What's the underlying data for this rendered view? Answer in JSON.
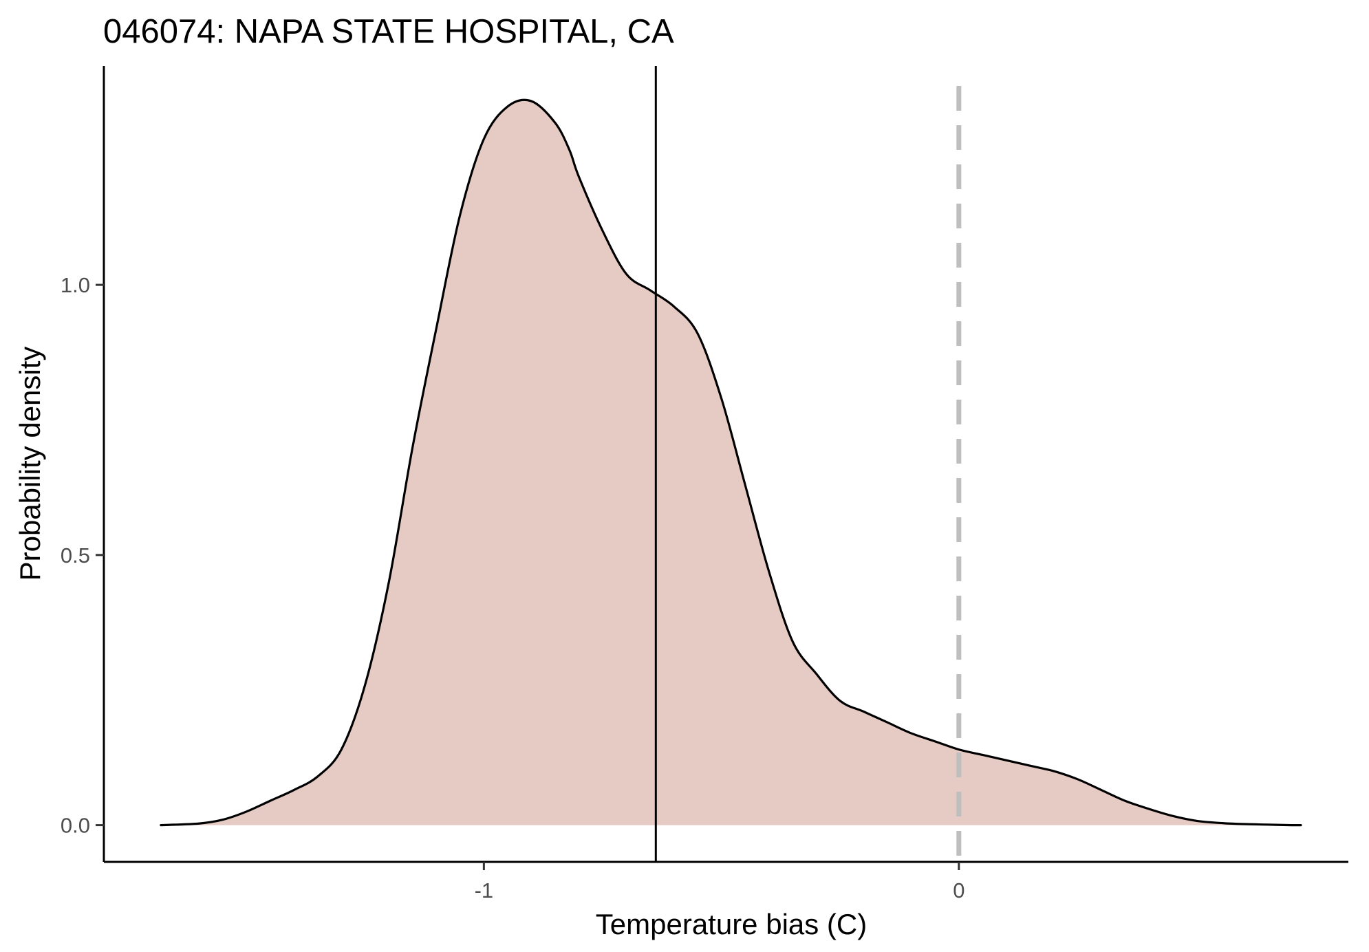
{
  "chart_data": {
    "type": "area",
    "title": "046074: NAPA STATE HOSPITAL, CA",
    "xlabel": "Temperature bias (C)",
    "ylabel": "Probability density",
    "xlim": [
      -1.8,
      0.82
    ],
    "ylim": [
      -0.068,
      1.405
    ],
    "x_ticks": [
      {
        "value": -1,
        "label": "-1"
      },
      {
        "value": 0,
        "label": "0"
      }
    ],
    "y_ticks": [
      {
        "value": 0.0,
        "label": "0.0"
      },
      {
        "value": 0.5,
        "label": "0.5"
      },
      {
        "value": 1.0,
        "label": "1.0"
      }
    ],
    "grid": false,
    "fill_color": "#e6cbc4",
    "line_color": "#000000",
    "reference_lines": [
      {
        "x": -0.638,
        "style": "solid",
        "color": "#000000"
      },
      {
        "x": 0.0,
        "style": "dashed",
        "color": "#bebebe"
      }
    ],
    "series": [
      {
        "x": [
          -1.68,
          -1.6,
          -1.55,
          -1.5,
          -1.45,
          -1.4,
          -1.35,
          -1.3,
          -1.25,
          -1.2,
          -1.15,
          -1.1,
          -1.05,
          -1.0,
          -0.95,
          -0.9,
          -0.85,
          -0.82,
          -0.8,
          -0.75,
          -0.7,
          -0.65,
          -0.6,
          -0.55,
          -0.5,
          -0.45,
          -0.4,
          -0.35,
          -0.3,
          -0.25,
          -0.2,
          -0.15,
          -0.1,
          -0.05,
          0.0,
          0.05,
          0.1,
          0.15,
          0.2,
          0.25,
          0.3,
          0.35,
          0.4,
          0.45,
          0.5,
          0.55,
          0.6,
          0.65,
          0.7,
          0.72
        ],
        "y": [
          0.0,
          0.003,
          0.01,
          0.025,
          0.045,
          0.065,
          0.09,
          0.14,
          0.26,
          0.45,
          0.7,
          0.92,
          1.13,
          1.27,
          1.33,
          1.34,
          1.3,
          1.25,
          1.2,
          1.1,
          1.02,
          0.99,
          0.96,
          0.91,
          0.79,
          0.63,
          0.47,
          0.34,
          0.28,
          0.23,
          0.21,
          0.19,
          0.17,
          0.155,
          0.14,
          0.13,
          0.12,
          0.11,
          0.1,
          0.085,
          0.065,
          0.045,
          0.03,
          0.017,
          0.008,
          0.004,
          0.002,
          0.001,
          0.0,
          0.0
        ]
      }
    ]
  }
}
